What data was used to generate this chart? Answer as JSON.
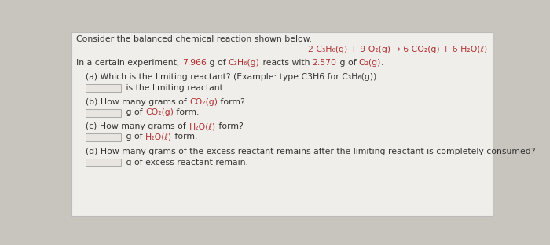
{
  "background_color": "#c8c5bf",
  "panel_color": "#f0eeeb",
  "panel_edge_color": "#bbbbbb",
  "title": "Consider the balanced chemical reaction shown below.",
  "equation_parts": [
    {
      "text": "2 C",
      "color": "#b03030"
    },
    {
      "text": "3",
      "color": "#b03030",
      "sub": true
    },
    {
      "text": "H",
      "color": "#b03030"
    },
    {
      "text": "6",
      "color": "#b03030",
      "sub": true
    },
    {
      "text": "(g) + 9 O",
      "color": "#b03030"
    },
    {
      "text": "2",
      "color": "#b03030",
      "sub": true
    },
    {
      "text": "(g) → 6 CO",
      "color": "#b03030"
    },
    {
      "text": "2",
      "color": "#b03030",
      "sub": true
    },
    {
      "text": "(g) + 6 H",
      "color": "#b03030"
    },
    {
      "text": "2",
      "color": "#b03030",
      "sub": true
    },
    {
      "text": "O(ℓ)",
      "color": "#b03030"
    }
  ],
  "equation_simple": "2 C₃H₆(g) + 9 O₂(g) → 6 CO₂(g) + 6 H₂O(ℓ)",
  "intro_segments": [
    {
      "text": "In a certain experiment, ",
      "color": "#333333"
    },
    {
      "text": "7.966",
      "color": "#b03030"
    },
    {
      "text": " g of ",
      "color": "#333333"
    },
    {
      "text": "C₃H₆(g)",
      "color": "#b03030"
    },
    {
      "text": " reacts with ",
      "color": "#333333"
    },
    {
      "text": "2.570",
      "color": "#b03030"
    },
    {
      "text": " g of ",
      "color": "#333333"
    },
    {
      "text": "O₂(g)",
      "color": "#b03030"
    },
    {
      "text": ".",
      "color": "#333333"
    }
  ],
  "qa_question": "(a) Which is the limiting reactant? (Example: type C3H6 for C₃H₆(g))",
  "qa_suffix_parts": [
    {
      "text": " is the limiting reactant.",
      "color": "#333333"
    }
  ],
  "qb_question_parts": [
    {
      "text": "(b) How many grams of ",
      "color": "#333333"
    },
    {
      "text": "CO₂(g)",
      "color": "#b03030"
    },
    {
      "text": " form?",
      "color": "#333333"
    }
  ],
  "qb_suffix_parts": [
    {
      "text": " g of ",
      "color": "#333333"
    },
    {
      "text": "CO₂(g)",
      "color": "#b03030"
    },
    {
      "text": " form.",
      "color": "#333333"
    }
  ],
  "qc_question_parts": [
    {
      "text": "(c) How many grams of ",
      "color": "#333333"
    },
    {
      "text": "H₂O(ℓ)",
      "color": "#b03030"
    },
    {
      "text": " form?",
      "color": "#333333"
    }
  ],
  "qc_suffix_parts": [
    {
      "text": " g of ",
      "color": "#333333"
    },
    {
      "text": "H₂O(ℓ)",
      "color": "#b03030"
    },
    {
      "text": " form.",
      "color": "#333333"
    }
  ],
  "qd_question": "(d) How many grams of the excess reactant remains after the limiting reactant is completely consumed?",
  "qd_suffix": " g of excess reactant remain.",
  "text_color": "#333333",
  "red_color": "#b03030",
  "box_fill": "#e8e5e0",
  "box_edge": "#aaaaaa",
  "font_size": 7.8
}
